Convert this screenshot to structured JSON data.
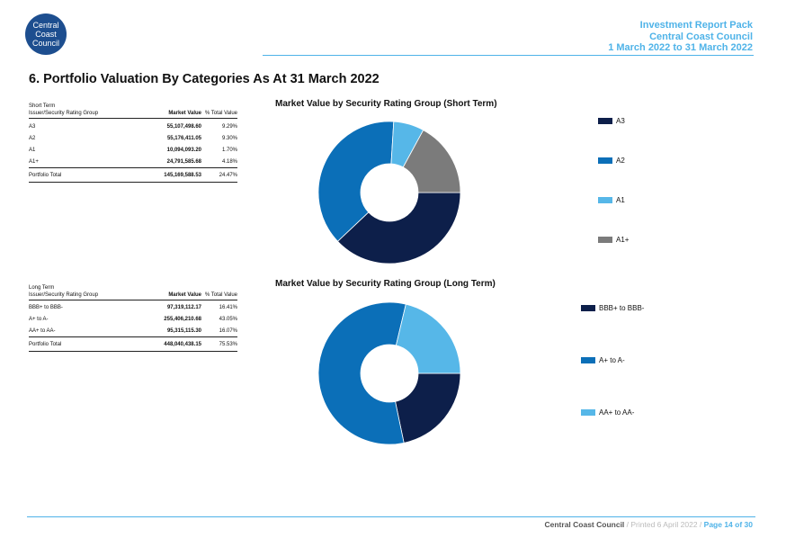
{
  "logo": {
    "line1": "Central",
    "line2": "Coast",
    "line3": "Council"
  },
  "header": {
    "line1": "Investment Report Pack",
    "line2": "Central Coast Council",
    "line3": "1 March 2022 to 31 March 2022"
  },
  "title": "6. Portfolio Valuation By Categories As At 31 March 2022",
  "short_table": {
    "caption1": "Short Term",
    "caption2": "Issuer/Security Rating Group",
    "col_mv": "Market Value",
    "col_pct": "% Total Value",
    "rows": [
      {
        "label": "A3",
        "mv": "55,107,498.60",
        "pct": "9.29%"
      },
      {
        "label": "A2",
        "mv": "55,176,411.05",
        "pct": "9.30%"
      },
      {
        "label": "A1",
        "mv": "10,094,093.20",
        "pct": "1.70%"
      },
      {
        "label": "A1+",
        "mv": "24,791,585.68",
        "pct": "4.18%"
      }
    ],
    "total": {
      "label": "Portfolio Total",
      "mv": "145,169,588.53",
      "pct": "24.47%"
    }
  },
  "long_table": {
    "caption1": "Long Term",
    "caption2": "Issuer/Security Rating Group",
    "col_mv": "Market Value",
    "col_pct": "% Total Value",
    "rows": [
      {
        "label": "BBB+ to BBB-",
        "mv": "97,319,112.17",
        "pct": "16.41%"
      },
      {
        "label": "A+ to A-",
        "mv": "255,406,210.68",
        "pct": "43.05%"
      },
      {
        "label": "AA+ to AA-",
        "mv": "95,315,115.30",
        "pct": "16.07%"
      }
    ],
    "total": {
      "label": "Portfolio Total",
      "mv": "448,040,438.15",
      "pct": "75.53%"
    }
  },
  "chart_data": [
    {
      "type": "pie",
      "title": "Market Value by Security Rating Group (Short Term)",
      "categories": [
        "A3",
        "A2",
        "A1",
        "A1+"
      ],
      "values": [
        55107498.6,
        55176411.05,
        10094093.2,
        24791585.68
      ],
      "colors": [
        "#0d1f4a",
        "#0b6fb8",
        "#56b7e8",
        "#7b7b7b"
      ],
      "legend_position": "right"
    },
    {
      "type": "pie",
      "title": "Market Value by Security Rating Group (Long Term)",
      "categories": [
        "BBB+ to BBB-",
        "A+ to A-",
        "AA+ to AA-"
      ],
      "values": [
        97319112.17,
        255406210.68,
        95315115.3
      ],
      "colors": [
        "#0d1f4a",
        "#0b6fb8",
        "#56b7e8"
      ],
      "legend_position": "right"
    }
  ],
  "footer": {
    "council": "Central Coast Council",
    "printed": " / Printed 6 April 2022 / ",
    "page": "Page 14 of 30"
  }
}
